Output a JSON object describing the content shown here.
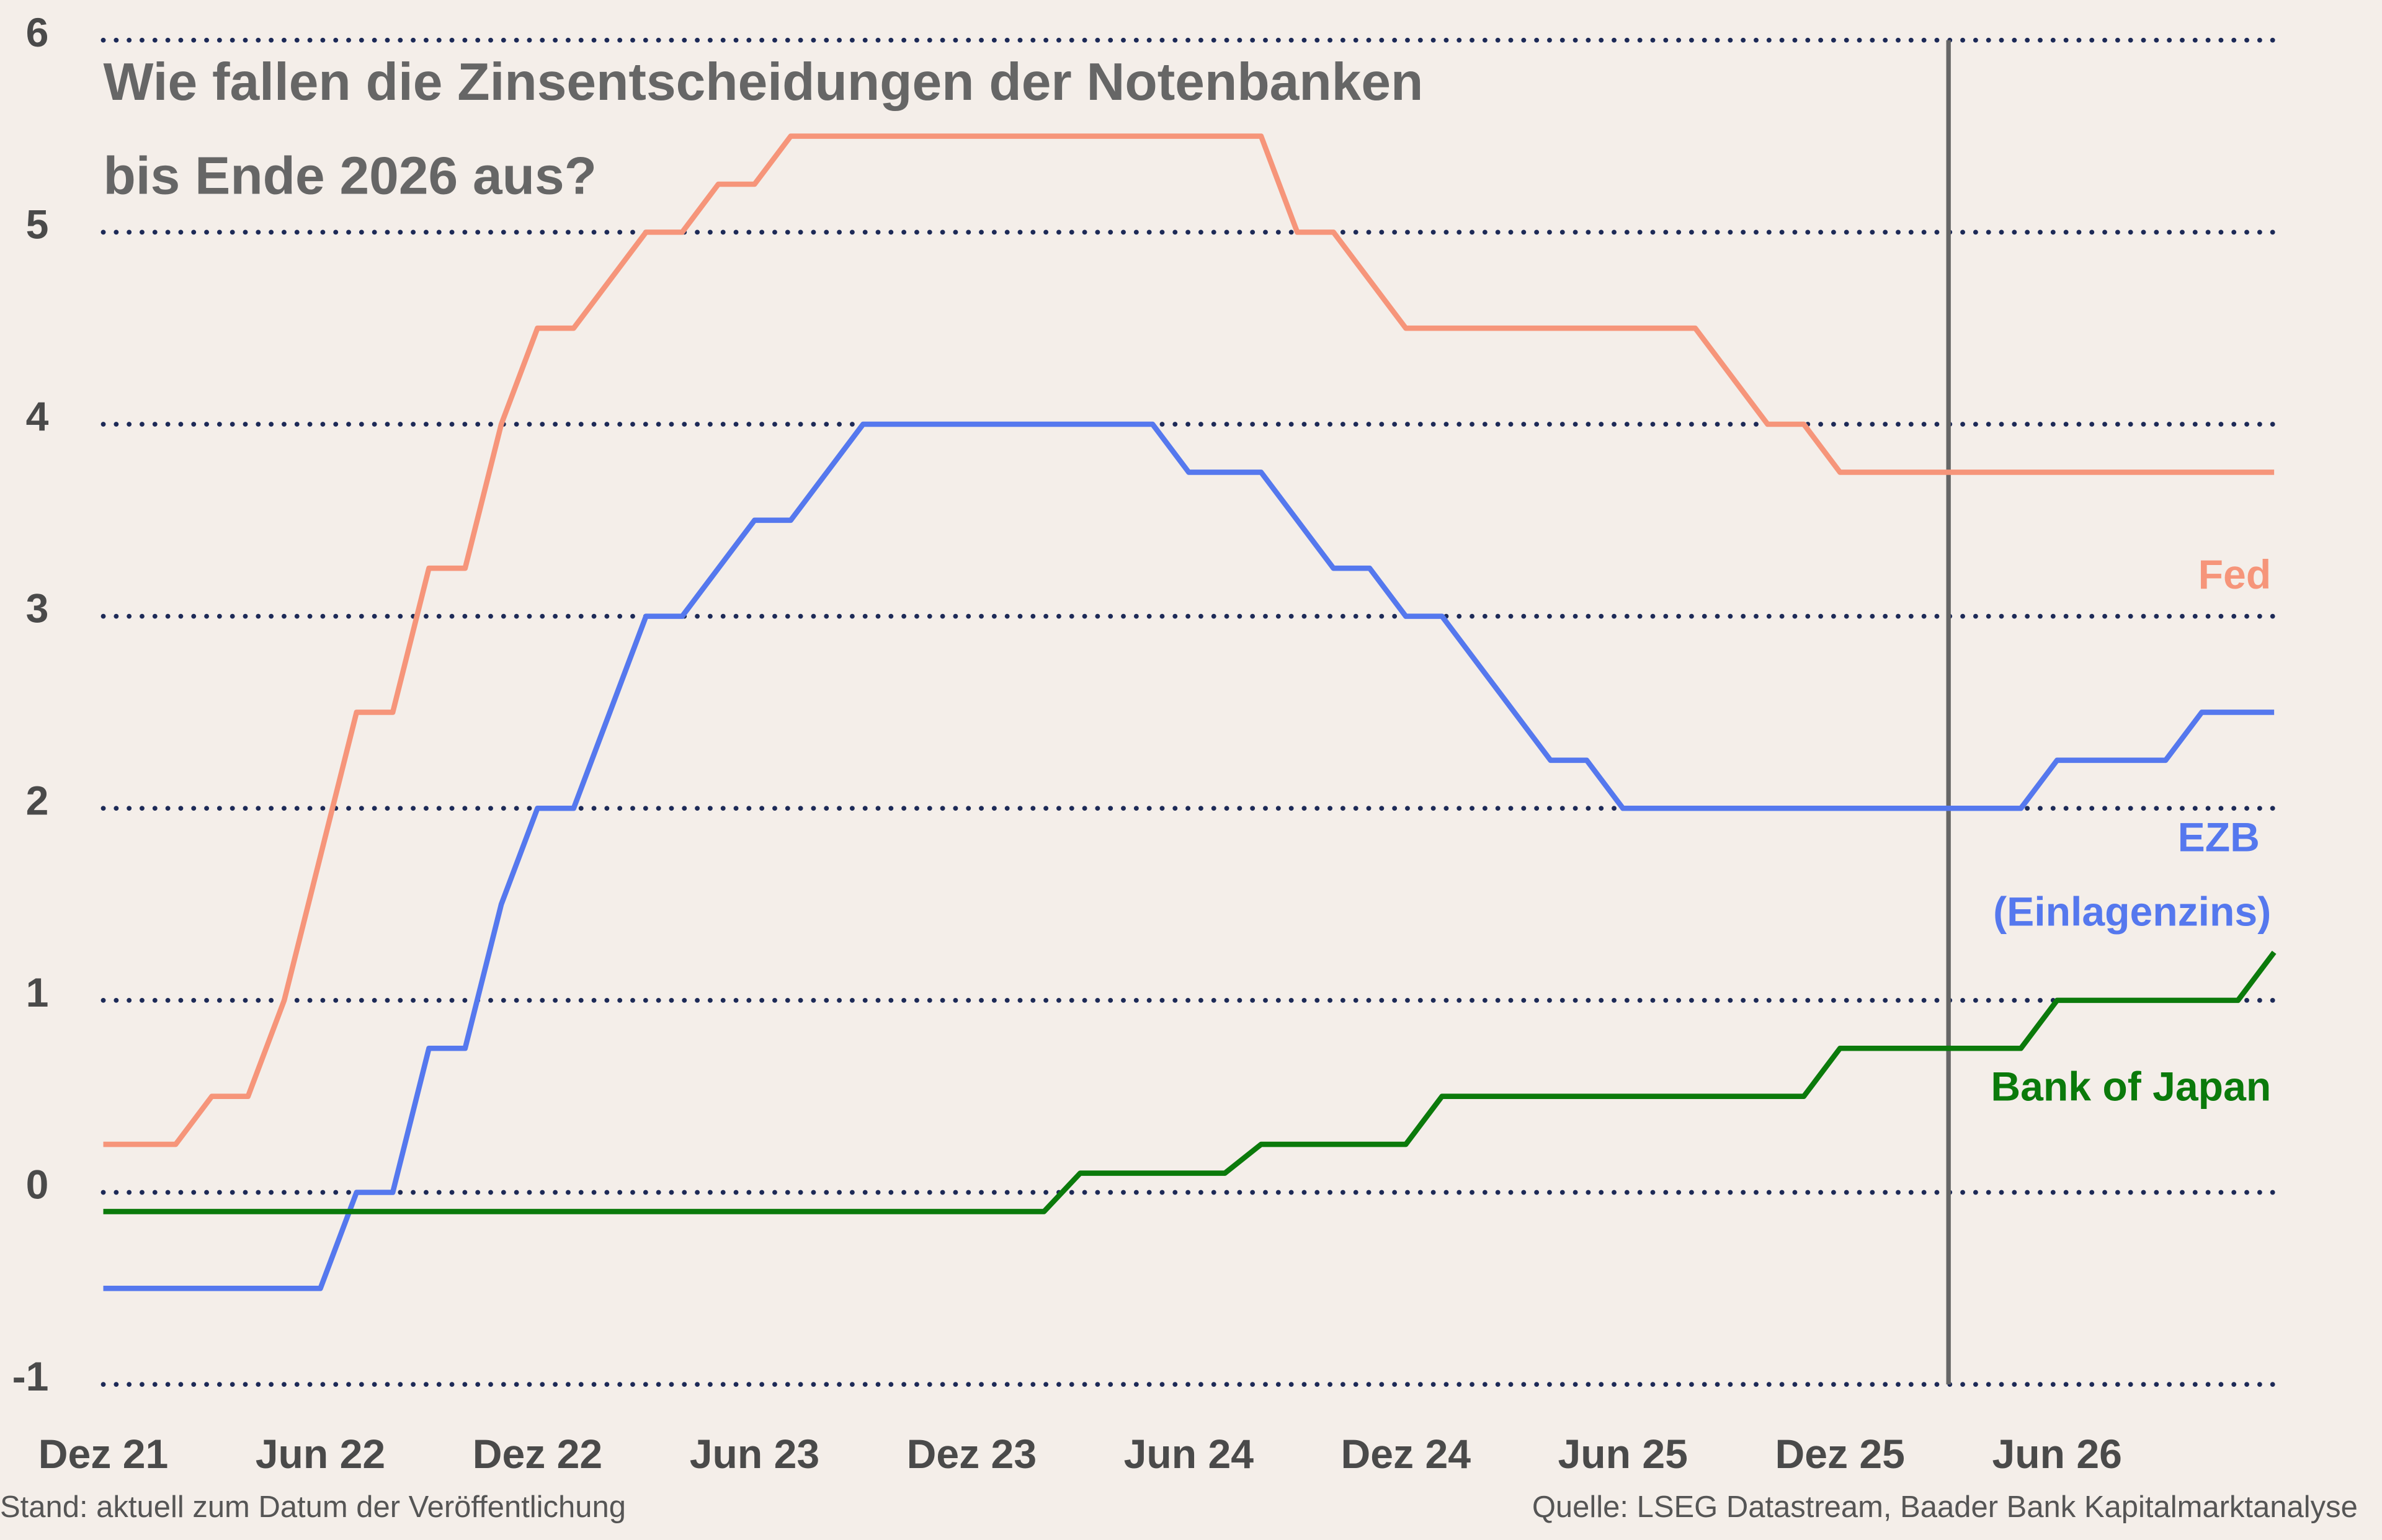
{
  "chart_data": {
    "type": "line",
    "title": [
      "Wie fallen die Zinsentscheidungen der Notenbanken",
      "bis Ende 2026 aus?"
    ],
    "note_left": "Stand: aktuell zum Datum der Veröffentlichung",
    "note_right": "Quelle: LSEG Datastream, Baader Bank Kapitalmarktanalyse",
    "x": [
      "2021-12",
      "2022-01",
      "2022-02",
      "2022-03",
      "2022-04",
      "2022-05",
      "2022-06",
      "2022-07",
      "2022-08",
      "2022-09",
      "2022-10",
      "2022-11",
      "2022-12",
      "2023-01",
      "2023-02",
      "2023-03",
      "2023-04",
      "2023-05",
      "2023-06",
      "2023-07",
      "2023-08",
      "2023-09",
      "2023-10",
      "2023-11",
      "2023-12",
      "2024-01",
      "2024-02",
      "2024-03",
      "2024-04",
      "2024-05",
      "2024-06",
      "2024-07",
      "2024-08",
      "2024-09",
      "2024-10",
      "2024-11",
      "2024-12",
      "2025-01",
      "2025-02",
      "2025-03",
      "2025-04",
      "2025-05",
      "2025-06",
      "2025-07",
      "2025-08",
      "2025-09",
      "2025-10",
      "2025-11",
      "2025-12",
      "2026-01",
      "2026-02",
      "2026-03",
      "2026-04",
      "2026-05",
      "2026-06",
      "2026-07",
      "2026-08",
      "2026-09",
      "2026-10",
      "2026-11",
      "2026-12"
    ],
    "xlim": [
      "2021-12",
      "2026-12"
    ],
    "xticks": [
      {
        "value": "2021-12",
        "label": "Dez 21"
      },
      {
        "value": "2022-06",
        "label": "Jun 22"
      },
      {
        "value": "2022-12",
        "label": "Dez 22"
      },
      {
        "value": "2023-06",
        "label": "Jun 23"
      },
      {
        "value": "2023-12",
        "label": "Dez 23"
      },
      {
        "value": "2024-06",
        "label": "Jun 24"
      },
      {
        "value": "2024-12",
        "label": "Dez 24"
      },
      {
        "value": "2025-06",
        "label": "Jun 25"
      },
      {
        "value": "2025-12",
        "label": "Dez 25"
      },
      {
        "value": "2026-06",
        "label": "Jun 26"
      }
    ],
    "ylim": [
      -1,
      6
    ],
    "yticks": [
      -1,
      0,
      1,
      2,
      3,
      4,
      5,
      6
    ],
    "grid": true,
    "vline": "2026-03",
    "series": [
      {
        "name": "Fed",
        "color": "#f6957a",
        "values": [
          0.25,
          0.25,
          0.25,
          0.5,
          0.5,
          1.0,
          1.75,
          2.5,
          2.5,
          3.25,
          3.25,
          4.0,
          4.5,
          4.5,
          4.75,
          5.0,
          5.0,
          5.25,
          5.25,
          5.5,
          5.5,
          5.5,
          5.5,
          5.5,
          5.5,
          5.5,
          5.5,
          5.5,
          5.5,
          5.5,
          5.5,
          5.5,
          5.5,
          5.0,
          5.0,
          4.75,
          4.5,
          4.5,
          4.5,
          4.5,
          4.5,
          4.5,
          4.5,
          4.5,
          4.5,
          4.25,
          4.0,
          4.0,
          3.75,
          3.75,
          3.75,
          3.75,
          3.75,
          3.75,
          3.75,
          3.75,
          3.75,
          3.75,
          3.75,
          3.75,
          3.75
        ]
      },
      {
        "name": "EZB (Einlagenzins)",
        "color": "#5578ee",
        "values": [
          -0.5,
          -0.5,
          -0.5,
          -0.5,
          -0.5,
          -0.5,
          -0.5,
          0,
          0,
          0.75,
          0.75,
          1.5,
          2.0,
          2.0,
          2.5,
          3.0,
          3.0,
          3.25,
          3.5,
          3.5,
          3.75,
          4.0,
          4.0,
          4.0,
          4.0,
          4.0,
          4.0,
          4.0,
          4.0,
          4.0,
          3.75,
          3.75,
          3.75,
          3.5,
          3.25,
          3.25,
          3.0,
          3.0,
          2.75,
          2.5,
          2.25,
          2.25,
          2.0,
          2.0,
          2.0,
          2.0,
          2.0,
          2.0,
          2.0,
          2.0,
          2.0,
          2.0,
          2.0,
          2.0,
          2.25,
          2.25,
          2.25,
          2.25,
          2.5,
          2.5,
          2.5
        ]
      },
      {
        "name": "Bank of Japan",
        "color": "#0b7a0b",
        "values": [
          -0.1,
          -0.1,
          -0.1,
          -0.1,
          -0.1,
          -0.1,
          -0.1,
          -0.1,
          -0.1,
          -0.1,
          -0.1,
          -0.1,
          -0.1,
          -0.1,
          -0.1,
          -0.1,
          -0.1,
          -0.1,
          -0.1,
          -0.1,
          -0.1,
          -0.1,
          -0.1,
          -0.1,
          -0.1,
          -0.1,
          -0.1,
          0.1,
          0.1,
          0.1,
          0.1,
          0.1,
          0.25,
          0.25,
          0.25,
          0.25,
          0.25,
          0.5,
          0.5,
          0.5,
          0.5,
          0.5,
          0.5,
          0.5,
          0.5,
          0.5,
          0.5,
          0.5,
          0.75,
          0.75,
          0.75,
          0.75,
          0.75,
          0.75,
          1.0,
          1.0,
          1.0,
          1.0,
          1.0,
          1.0,
          1.25
        ]
      }
    ]
  }
}
